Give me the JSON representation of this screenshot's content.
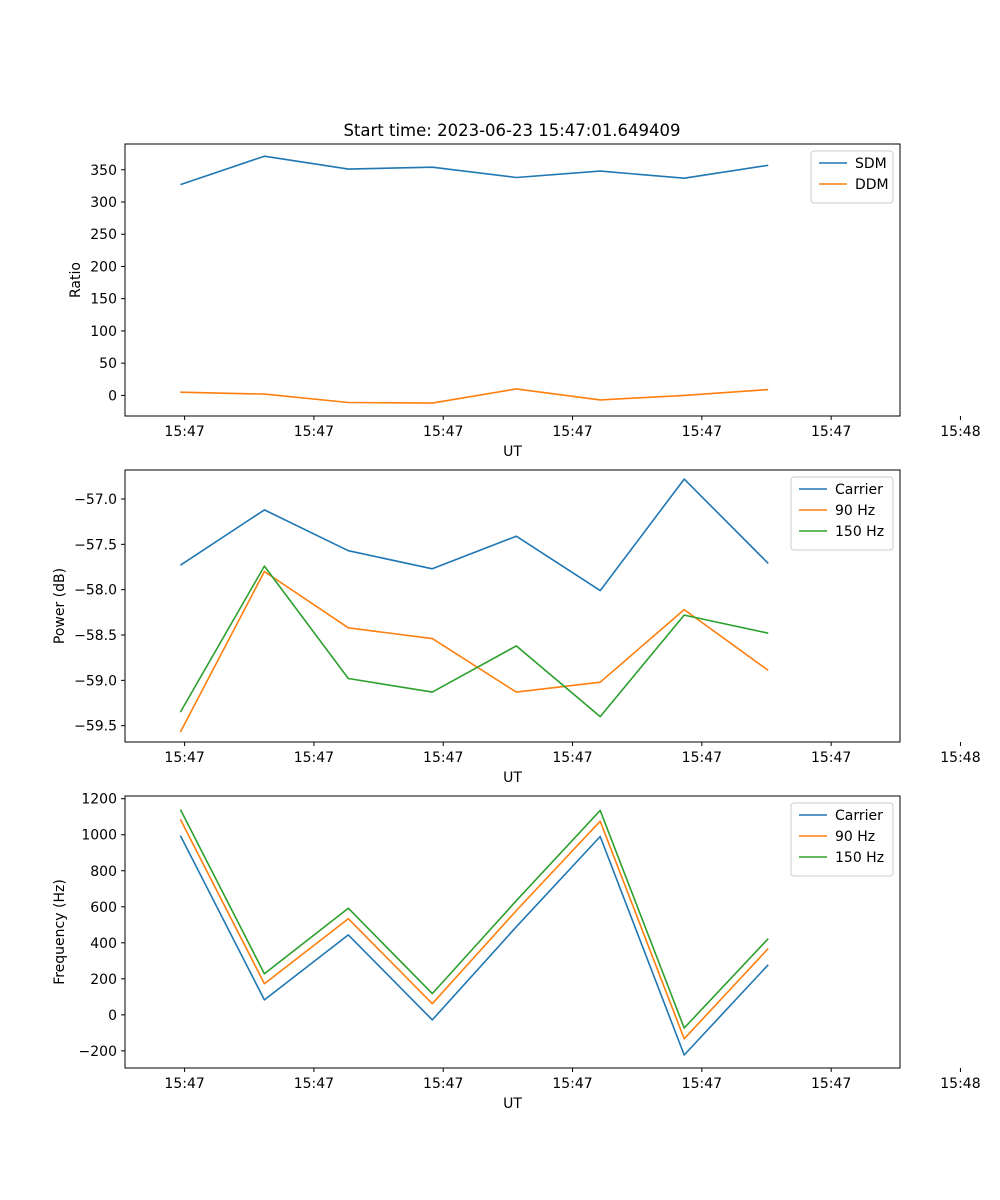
{
  "figure": {
    "title": "Start time: 2023-06-23 15:47:01.649409"
  },
  "colors": {
    "blue": "#1f77b4",
    "orange": "#ff7f0e",
    "green": "#2ca02c",
    "axis": "#000000",
    "legend_border": "#cccccc"
  },
  "chart_data": [
    {
      "type": "line",
      "title": "Start time: 2023-06-23 15:47:01.649409",
      "xlabel": "UT",
      "ylabel": "Ratio",
      "x_tick_labels": [
        "15:47",
        "15:47",
        "15:47",
        "15:47",
        "15:47",
        "15:47",
        "15:48"
      ],
      "y_ticks": [
        0,
        50,
        100,
        150,
        200,
        250,
        300,
        350
      ],
      "ylim": [
        -32,
        390
      ],
      "legend_position": "upper-right",
      "grid": false,
      "x": [
        1,
        2,
        3,
        4,
        5,
        6,
        7,
        8
      ],
      "xlim": [
        0.34,
        9.57
      ],
      "series": [
        {
          "name": "SDM",
          "color": "#1f77b4",
          "values": [
            327,
            371,
            351,
            354,
            338,
            348,
            337,
            357
          ]
        },
        {
          "name": "DDM",
          "color": "#ff7f0e",
          "values": [
            5,
            2,
            -11,
            -12,
            10,
            -7,
            0,
            9
          ]
        }
      ]
    },
    {
      "type": "line",
      "xlabel": "UT",
      "ylabel": "Power (dB)",
      "x_tick_labels": [
        "15:47",
        "15:47",
        "15:47",
        "15:47",
        "15:47",
        "15:47",
        "15:48"
      ],
      "y_ticks": [
        -59.5,
        -59.0,
        -58.5,
        -58.0,
        -57.5,
        -57.0
      ],
      "y_tick_labels": [
        "−59.5",
        "−59.0",
        "−58.5",
        "−58.0",
        "−57.5",
        "−57.0"
      ],
      "ylim": [
        -59.68,
        -56.68
      ],
      "legend_position": "upper-right",
      "grid": false,
      "x": [
        1,
        2,
        3,
        4,
        5,
        6,
        7,
        8
      ],
      "xlim": [
        0.34,
        9.57
      ],
      "series": [
        {
          "name": "Carrier",
          "color": "#1f77b4",
          "values": [
            -57.73,
            -57.12,
            -57.57,
            -57.77,
            -57.41,
            -58.01,
            -56.78,
            -57.71
          ]
        },
        {
          "name": "90 Hz",
          "color": "#ff7f0e",
          "values": [
            -59.57,
            -57.8,
            -58.42,
            -58.54,
            -59.13,
            -59.02,
            -58.22,
            -58.89
          ]
        },
        {
          "name": "150 Hz",
          "color": "#2ca02c",
          "values": [
            -59.35,
            -57.74,
            -58.98,
            -59.13,
            -58.62,
            -59.4,
            -58.28,
            -58.48
          ]
        }
      ]
    },
    {
      "type": "line",
      "xlabel": "UT",
      "ylabel": "Frequency (Hz)",
      "x_tick_labels": [
        "15:47",
        "15:47",
        "15:47",
        "15:47",
        "15:47",
        "15:47",
        "15:48"
      ],
      "y_ticks": [
        -200,
        0,
        200,
        400,
        600,
        800,
        1000,
        1200
      ],
      "y_tick_labels": [
        "−200",
        "0",
        "200",
        "400",
        "600",
        "800",
        "1000",
        "1200"
      ],
      "ylim": [
        -295,
        1215
      ],
      "legend_position": "upper-right",
      "grid": false,
      "x": [
        1,
        2,
        3,
        4,
        5,
        6,
        7,
        8
      ],
      "xlim": [
        0.34,
        9.57
      ],
      "series": [
        {
          "name": "Carrier",
          "color": "#1f77b4",
          "values": [
            995,
            83,
            444,
            -28,
            489,
            990,
            -223,
            278
          ]
        },
        {
          "name": "90 Hz",
          "color": "#ff7f0e",
          "values": [
            1085,
            173,
            534,
            62,
            579,
            1075,
            -133,
            368
          ]
        },
        {
          "name": "150 Hz",
          "color": "#2ca02c",
          "values": [
            1140,
            228,
            592,
            118,
            634,
            1135,
            -73,
            423
          ]
        }
      ]
    }
  ]
}
